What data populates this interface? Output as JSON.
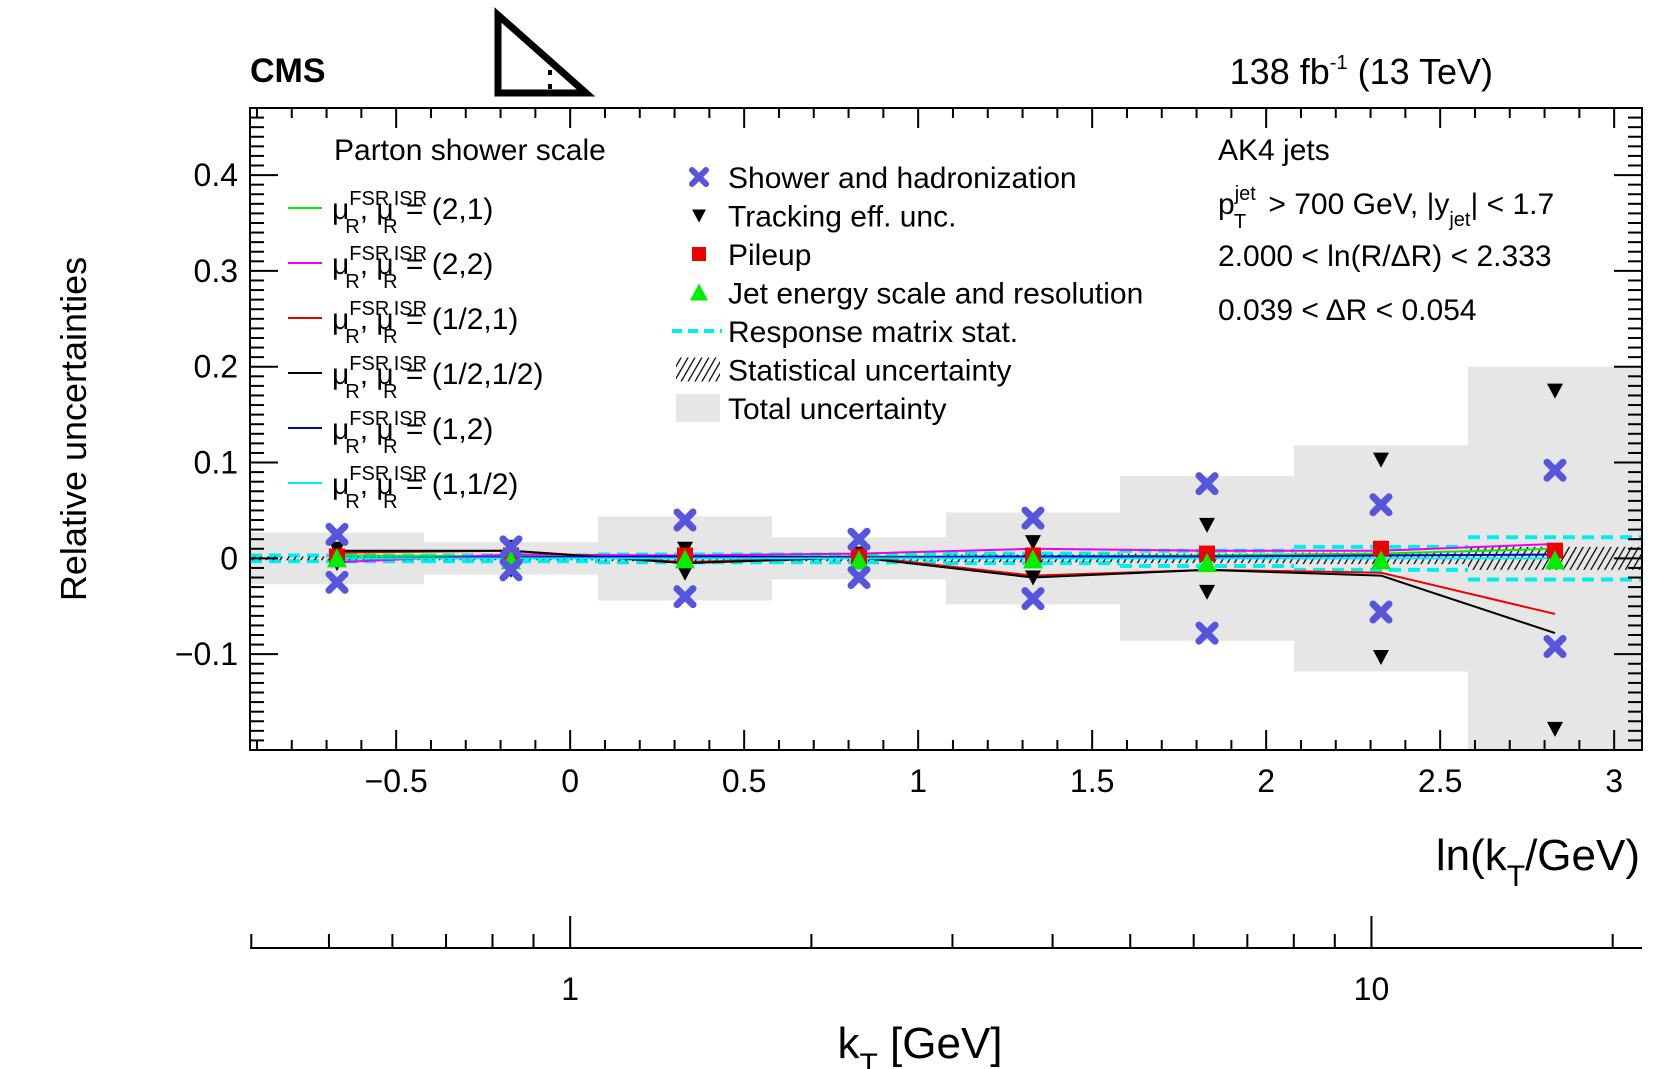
{
  "header": {
    "experiment": "CMS",
    "lumi": "138",
    "lumi_unit": "fb",
    "lumi_exp": "-1",
    "energy": "(13 TeV)"
  },
  "info": {
    "jets": "AK4 jets",
    "pt_cut_p": "p",
    "pt_cut_sup": "jet",
    "pt_cut_sub": "T",
    "pt_cut_text": "> 700 GeV, |y",
    "pt_cut_ysub": "jet",
    "pt_cut_end": "| < 1.7",
    "ln_range": "2.000 < ln(R/ΔR) < 2.333",
    "dr_range": "0.039 < ΔR < 0.054"
  },
  "chart_data": {
    "type": "scatter",
    "title": "",
    "xlabel": "ln(k_T/GeV)",
    "xlabel2": "k_T [GeV]",
    "ylabel": "Relative uncertainties",
    "xlim": [
      -0.92,
      3.08
    ],
    "ylim": [
      -0.2,
      0.47
    ],
    "x_ticks": [
      -0.5,
      0,
      0.5,
      1,
      1.5,
      2,
      2.5,
      3
    ],
    "x_tick_labels": [
      "−0.5",
      "0",
      "0.5",
      "1",
      "1.5",
      "2",
      "2.5",
      "3"
    ],
    "y_ticks": [
      -0.1,
      0,
      0.1,
      0.2,
      0.3,
      0.4
    ],
    "y_tick_labels": [
      "−0.1",
      "0",
      "0.1",
      "0.2",
      "0.3",
      "0.4"
    ],
    "kt_axis_labels": [
      {
        "value": 1,
        "label": "1"
      },
      {
        "value": 10,
        "label": "10"
      }
    ],
    "bin_edges": [
      -0.92,
      -0.42,
      0.08,
      0.58,
      1.08,
      1.58,
      2.08,
      2.58,
      3.08
    ],
    "bin_centers": [
      -0.67,
      -0.17,
      0.33,
      0.83,
      1.33,
      1.83,
      2.33,
      2.83
    ],
    "total_uncertainty": [
      0.027,
      0.017,
      0.044,
      0.022,
      0.048,
      0.086,
      0.118,
      0.2
    ],
    "statistical_uncertainty": [
      0.002,
      0.002,
      0.003,
      0.003,
      0.004,
      0.005,
      0.006,
      0.012
    ],
    "response_matrix_stat": [
      0.003,
      0.003,
      0.004,
      0.004,
      0.005,
      0.008,
      0.012,
      0.022
    ],
    "shower_hadronization": [
      0.025,
      0.012,
      0.04,
      0.02,
      0.042,
      0.078,
      0.056,
      0.092
    ],
    "tracking_eff": {
      "up": [
        0.01,
        0.012,
        0.01,
        0.005,
        0.017,
        0.035,
        0.103,
        0.175
      ],
      "down": [
        -0.005,
        -0.012,
        -0.015,
        -0.004,
        -0.02,
        -0.035,
        -0.103,
        -0.178
      ]
    },
    "pileup": [
      0.002,
      0.003,
      0.003,
      0.002,
      0.003,
      0.005,
      0.01,
      0.008
    ],
    "jes_jer": [
      0.0,
      -0.002,
      -0.001,
      -0.002,
      -0.001,
      -0.005,
      -0.002,
      -0.002
    ],
    "series": [
      {
        "name": "(2,1)",
        "color": "#00ee00",
        "values": [
          0.003,
          0.002,
          0.002,
          0.002,
          0.002,
          0.003,
          0.005,
          0.01
        ]
      },
      {
        "name": "(2,2)",
        "color": "#ee00ee",
        "values": [
          -0.004,
          0.004,
          0.003,
          0.005,
          0.01,
          0.008,
          0.008,
          0.015
        ]
      },
      {
        "name": "(1/2,1)",
        "color": "#ee0000",
        "values": [
          0.006,
          0.008,
          -0.004,
          0.002,
          -0.018,
          -0.012,
          -0.015,
          -0.058
        ]
      },
      {
        "name": "(1/2,1/2)",
        "color": "#000000",
        "values": [
          0.008,
          0.008,
          -0.005,
          0.001,
          -0.02,
          -0.012,
          -0.018,
          -0.078
        ]
      },
      {
        "name": "(1,2)",
        "color": "#0000cc",
        "values": [
          0.0,
          0.001,
          0.002,
          0.001,
          0.002,
          0.002,
          0.003,
          0.004
        ]
      },
      {
        "name": "(1,1/2)",
        "color": "#00eeee",
        "values": [
          0.0,
          0.0,
          0.0,
          0.0,
          0.0,
          0.0,
          0.0,
          0.0
        ]
      }
    ],
    "legend_left_title": "Parton shower scale",
    "legend_mu_fsr": "FSR",
    "legend_mu_isr": "ISR",
    "legend_mu_sub": "R",
    "legend_right": [
      "Shower and hadronization",
      "Tracking eff. unc.",
      "Pileup",
      "Jet energy scale and resolution",
      "Response matrix stat.",
      "Statistical uncertainty",
      "Total uncertainty"
    ],
    "colors": {
      "shower": "#5555dd",
      "tracking": "#000000",
      "pileup": "#ee0000",
      "jes": "#00ee00",
      "response": "#00eeee",
      "total": "#e6e6e6"
    }
  }
}
